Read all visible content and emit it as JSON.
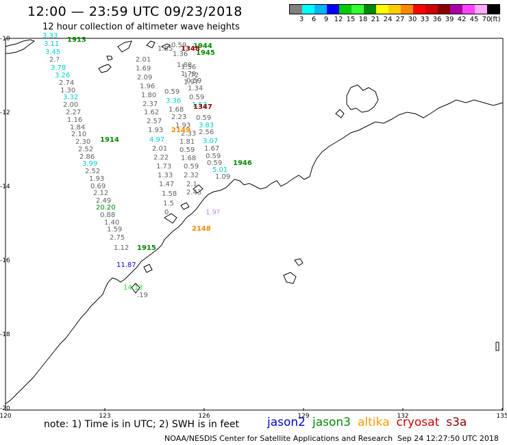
{
  "header": {
    "title": "12:00 — 23:59 UTC 09/23/2018",
    "subtitle": "12 hour collection of altimeter wave heights"
  },
  "legend": {
    "colors": [
      "#808080",
      "#00ffff",
      "#00b4ff",
      "#0000ff",
      "#00cc00",
      "#33ff33",
      "#008800",
      "#ffff00",
      "#ffcc00",
      "#ff8800",
      "#ff0000",
      "#cc0000",
      "#880000",
      "#aa00aa",
      "#ff44ff",
      "#ffaaff",
      "#000000"
    ],
    "labels": [
      "3",
      "6",
      "9",
      "12",
      "15",
      "18",
      "21",
      "24",
      "27",
      "30",
      "33",
      "36",
      "39",
      "42",
      "45",
      "70"
    ],
    "unit": "(ft)"
  },
  "axes": {
    "lat_labels": [
      "-10",
      "-12",
      "-14",
      "-16",
      "-18",
      "-20"
    ],
    "lon_labels": [
      "120",
      "123",
      "126",
      "129",
      "132",
      "135"
    ]
  },
  "tracks": [
    {
      "label": "1913",
      "color": "#008800"
    },
    {
      "label": "1914",
      "color": "#008800"
    },
    {
      "label": "1915",
      "color": "#008800"
    },
    {
      "label": "1944",
      "color": "#008800"
    },
    {
      "label": "1945",
      "color": "#008800"
    },
    {
      "label": "1946",
      "color": "#008800"
    },
    {
      "label": "1348",
      "color": "#880000"
    },
    {
      "label": "1347",
      "color": "#880000"
    },
    {
      "label": "2149",
      "color": "#ff8800"
    },
    {
      "label": "2148",
      "color": "#ff8800"
    }
  ],
  "readings": [
    {
      "text": "3.33",
      "color": "#00cccc"
    },
    {
      "text": "3.11",
      "color": "#00cccc"
    },
    {
      "text": "3.45",
      "color": "#00cccc"
    },
    {
      "text": "2.?",
      "color": "#606060"
    },
    {
      "text": "3.78",
      "color": "#00cccc"
    },
    {
      "text": "3.26",
      "color": "#00cccc"
    },
    {
      "text": "2.74",
      "color": "#606060"
    },
    {
      "text": "1.30",
      "color": "#606060"
    },
    {
      "text": "3.32",
      "color": "#00cccc"
    },
    {
      "text": "2.00",
      "color": "#606060"
    },
    {
      "text": "2.27",
      "color": "#606060"
    },
    {
      "text": "1.16",
      "color": "#606060"
    },
    {
      "text": "1.84",
      "color": "#606060"
    },
    {
      "text": "2.10",
      "color": "#606060"
    },
    {
      "text": "2.30",
      "color": "#606060"
    },
    {
      "text": "2.52",
      "color": "#606060"
    },
    {
      "text": "2.86",
      "color": "#606060"
    },
    {
      "text": "3.99",
      "color": "#00cccc"
    },
    {
      "text": "2.52",
      "color": "#606060"
    },
    {
      "text": "1.93",
      "color": "#606060"
    },
    {
      "text": "0.69",
      "color": "#606060"
    },
    {
      "text": "2.12",
      "color": "#606060"
    },
    {
      "text": "2.49",
      "color": "#606060"
    },
    {
      "text": "20.20",
      "color": "#008800"
    },
    {
      "text": "0.88",
      "color": "#606060"
    },
    {
      "text": "1.40",
      "color": "#606060"
    },
    {
      "text": "1.59",
      "color": "#606060"
    },
    {
      "text": "2.75",
      "color": "#606060"
    },
    {
      "text": "1.12",
      "color": "#606060"
    },
    {
      "text": "11.87",
      "color": "#0000cc"
    },
    {
      "text": "14.13",
      "color": "#33dd33"
    },
    {
      "text": ".19",
      "color": "#606060"
    },
    {
      "text": "1.85",
      "color": "#606060"
    },
    {
      "text": "2.01",
      "color": "#606060"
    },
    {
      "text": "1.69",
      "color": "#606060"
    },
    {
      "text": "2.09",
      "color": "#606060"
    },
    {
      "text": "1.96",
      "color": "#606060"
    },
    {
      "text": "1.80",
      "color": "#606060"
    },
    {
      "text": "2.37",
      "color": "#606060"
    },
    {
      "text": "1.62",
      "color": "#606060"
    },
    {
      "text": "2.57",
      "color": "#606060"
    },
    {
      "text": "1.93",
      "color": "#606060"
    },
    {
      "text": "4.97",
      "color": "#00cccc"
    },
    {
      "text": "2.01",
      "color": "#606060"
    },
    {
      "text": "2.22",
      "color": "#606060"
    },
    {
      "text": "1.73",
      "color": "#606060"
    },
    {
      "text": "1.33",
      "color": "#606060"
    },
    {
      "text": "1.47",
      "color": "#606060"
    },
    {
      "text": "1.58",
      "color": "#606060"
    },
    {
      "text": "1.5",
      "color": "#606060"
    },
    {
      "text": "0.",
      "color": "#606060"
    },
    {
      "text": "0.59",
      "color": "#606060"
    },
    {
      "text": "1.36",
      "color": "#606060"
    },
    {
      "text": "1.88",
      "color": "#606060"
    },
    {
      "text": "1.79",
      "color": "#606060"
    },
    {
      "text": "1.97",
      "color": "#606060"
    },
    {
      "text": "0.59",
      "color": "#606060"
    },
    {
      "text": "3.36",
      "color": "#00cccc"
    },
    {
      "text": "1.68",
      "color": "#606060"
    },
    {
      "text": "2.23",
      "color": "#606060"
    },
    {
      "text": "1.93",
      "color": "#606060"
    },
    {
      "text": "2.33",
      "color": "#606060"
    },
    {
      "text": "1.81",
      "color": "#606060"
    },
    {
      "text": "0.59",
      "color": "#606060"
    },
    {
      "text": "1.68",
      "color": "#606060"
    },
    {
      "text": "0.59",
      "color": "#606060"
    },
    {
      "text": "2.32",
      "color": "#606060"
    },
    {
      "text": "2.1",
      "color": "#606060"
    },
    {
      "text": "2.43",
      "color": "#606060"
    },
    {
      "text": "1.56",
      "color": "#606060"
    },
    {
      "text": "1.72",
      "color": "#606060"
    },
    {
      "text": "0.59",
      "color": "#606060"
    },
    {
      "text": "1.34",
      "color": "#606060"
    },
    {
      "text": "0.59",
      "color": "#606060"
    },
    {
      "text": "1.53",
      "color": "#00cccc"
    },
    {
      "text": "0.59",
      "color": "#606060"
    },
    {
      "text": "3.83",
      "color": "#00cccc"
    },
    {
      "text": "2.56",
      "color": "#606060"
    },
    {
      "text": "3.07",
      "color": "#00cccc"
    },
    {
      "text": "1.67",
      "color": "#606060"
    },
    {
      "text": "0.59",
      "color": "#606060"
    },
    {
      "text": "0.59",
      "color": "#606060"
    },
    {
      "text": "5.01",
      "color": "#00cccc"
    },
    {
      "text": "1.09",
      "color": "#606060"
    },
    {
      "text": "1.9?",
      "color": "#bb88ee"
    }
  ],
  "notes": {
    "note": "note: 1) Time is in UTC; 2) SWH is in feet",
    "credit": "NOAA/NESDIS Center for Satellite Applications and Research",
    "timestamp": "Sep 24 12:27:50 UTC 2018"
  },
  "satellites": [
    {
      "name": "jason2",
      "color": "#0000cc"
    },
    {
      "name": "jason3",
      "color": "#008800"
    },
    {
      "name": "altika",
      "color": "#ff9900"
    },
    {
      "name": "cryosat",
      "color": "#cc0000"
    },
    {
      "name": "s3a",
      "color": "#880000"
    }
  ]
}
